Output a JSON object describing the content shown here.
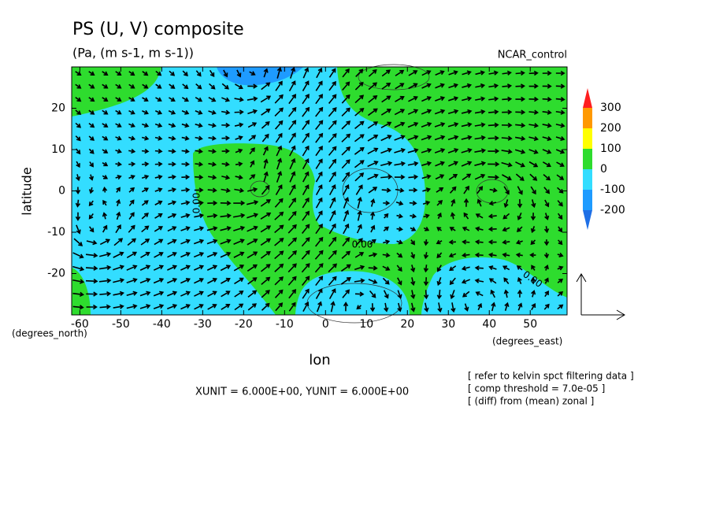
{
  "chart_data": {
    "type": "vector",
    "title": "PS (U, V) composite",
    "subtitle": "(Pa, (m s-1, m s-1))",
    "dataset_label": "NCAR_control",
    "xlabel": "lon",
    "ylabel": "latitude",
    "x_unit_label": "(degrees_east)",
    "y_unit_label": "(degrees_north)",
    "xlim": [
      -62,
      59
    ],
    "ylim": [
      -30,
      30
    ],
    "xticks": [
      -60,
      -50,
      -40,
      -30,
      -20,
      -10,
      0,
      10,
      20,
      30,
      40,
      50
    ],
    "yticks": [
      -20,
      -10,
      0,
      10,
      20
    ],
    "colorbar": {
      "levels": [
        -200,
        -100,
        0,
        100,
        200,
        300
      ],
      "colors": [
        "#1e6fe6",
        "#1e9bff",
        "#33ddff",
        "#2edc2e",
        "#ffff00",
        "#ff9900",
        "#ff1e1e"
      ]
    },
    "contour_labels": [
      "0.00",
      "0.00",
      "0.00"
    ],
    "unit_note": "XUNIT = 6.000E+00, YUNIT = 6.000E+00",
    "notes": [
      "[ refer to kelvin spct filtering data ]",
      "[ comp threshold = 7.0e-05 ]",
      "[ (diff) from (mean) zonal ]"
    ]
  }
}
